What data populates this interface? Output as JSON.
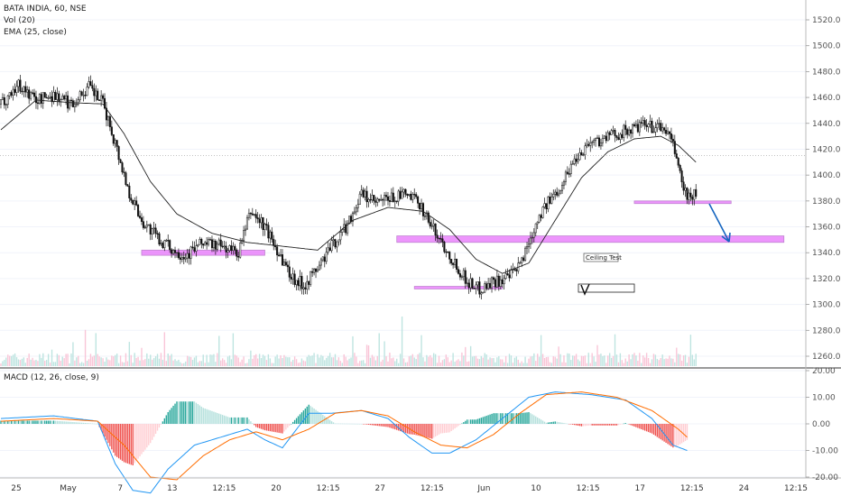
{
  "header": {
    "symbol_line": "BATA INDIA, 60, NSE",
    "vol_line": "Vol (20)",
    "ema_line": "EMA (25, close)",
    "macd_line": "MACD (12, 26, close, 9)"
  },
  "colors": {
    "up": "#26a69a",
    "down": "#ef5350",
    "macd_line": "#2196f3",
    "signal_line": "#ff6d00",
    "level_band": "#e040fb",
    "arrow": "#1565c0"
  },
  "annotations": {
    "ceiling_test": "Ceiling Test"
  },
  "chart_data": [
    {
      "type": "candlestick",
      "title": "BATA INDIA, 60, NSE",
      "price_ticks": [
        1520,
        1500,
        1480,
        1460,
        1440,
        1420,
        1400,
        1380,
        1360,
        1340,
        1320,
        1300,
        1280,
        1260
      ],
      "price_tick_labels": [
        "1520.00",
        "1500.00",
        "1480.00",
        "1460.00",
        "1440.00",
        "1420.00",
        "1400.00",
        "1380.00",
        "1360.00",
        "1340.00",
        "1320.00",
        "1300.00",
        "1280.00",
        "1260.00"
      ],
      "ylim": [
        1250,
        1530
      ],
      "x_labels": [
        "25",
        "May",
        "7",
        "13",
        "12:15",
        "20",
        "12:15",
        "27",
        "12:15",
        "Jun",
        "10",
        "12:15",
        "17",
        "12:15",
        "24",
        "12:15"
      ],
      "price_anchors": [
        [
          0,
          1455
        ],
        [
          10,
          1470
        ],
        [
          20,
          1458
        ],
        [
          30,
          1462
        ],
        [
          40,
          1455
        ],
        [
          50,
          1468
        ],
        [
          58,
          1455
        ],
        [
          65,
          1425
        ],
        [
          72,
          1390
        ],
        [
          80,
          1365
        ],
        [
          90,
          1350
        ],
        [
          98,
          1342
        ],
        [
          105,
          1338
        ],
        [
          115,
          1348
        ],
        [
          125,
          1345
        ],
        [
          135,
          1340
        ],
        [
          142,
          1372
        ],
        [
          150,
          1360
        ],
        [
          158,
          1340
        ],
        [
          165,
          1322
        ],
        [
          172,
          1315
        ],
        [
          180,
          1328
        ],
        [
          188,
          1345
        ],
        [
          196,
          1360
        ],
        [
          205,
          1385
        ],
        [
          213,
          1378
        ],
        [
          222,
          1382
        ],
        [
          230,
          1385
        ],
        [
          238,
          1378
        ],
        [
          245,
          1360
        ],
        [
          252,
          1345
        ],
        [
          258,
          1332
        ],
        [
          265,
          1318
        ],
        [
          272,
          1312
        ],
        [
          280,
          1318
        ],
        [
          288,
          1320
        ],
        [
          294,
          1328
        ],
        [
          300,
          1348
        ],
        [
          306,
          1370
        ],
        [
          312,
          1380
        ],
        [
          318,
          1392
        ],
        [
          326,
          1412
        ],
        [
          334,
          1425
        ],
        [
          342,
          1428
        ],
        [
          350,
          1432
        ],
        [
          358,
          1435
        ],
        [
          365,
          1438
        ],
        [
          372,
          1437
        ],
        [
          378,
          1435
        ],
        [
          384,
          1415
        ],
        [
          388,
          1388
        ],
        [
          392,
          1382
        ],
        [
          395,
          1386
        ]
      ],
      "ema_anchors": [
        [
          0,
          1435
        ],
        [
          20,
          1458
        ],
        [
          40,
          1456
        ],
        [
          58,
          1455
        ],
        [
          70,
          1432
        ],
        [
          85,
          1395
        ],
        [
          100,
          1370
        ],
        [
          120,
          1355
        ],
        [
          140,
          1348
        ],
        [
          160,
          1345
        ],
        [
          180,
          1342
        ],
        [
          200,
          1365
        ],
        [
          220,
          1375
        ],
        [
          240,
          1372
        ],
        [
          255,
          1358
        ],
        [
          270,
          1335
        ],
        [
          285,
          1324
        ],
        [
          300,
          1332
        ],
        [
          315,
          1365
        ],
        [
          330,
          1398
        ],
        [
          345,
          1418
        ],
        [
          360,
          1428
        ],
        [
          375,
          1430
        ],
        [
          385,
          1423
        ],
        [
          395,
          1410
        ]
      ],
      "current_price": 1415,
      "annotations": [
        {
          "type": "band",
          "price_low": 1338,
          "price_high": 1342,
          "from": 80,
          "to": 150
        },
        {
          "type": "band",
          "price_low": 1312,
          "price_high": 1314,
          "from": 235,
          "to": 285
        },
        {
          "type": "band",
          "price_low": 1348,
          "price_high": 1353,
          "from": 225,
          "to": 445
        },
        {
          "type": "band",
          "price_low": 1378,
          "price_high": 1380,
          "from": 360,
          "to": 415
        },
        {
          "type": "text",
          "price": 1340,
          "at": 323
        }
      ]
    },
    {
      "type": "histogram",
      "name": "MACD (12, 26, close, 9)",
      "y_ticks": [
        20,
        10,
        0,
        -10,
        -20
      ],
      "y_tick_labels": [
        "20.00",
        "10.00",
        "0.00",
        "-10.00",
        "-20.00"
      ],
      "ylim": [
        -24,
        24
      ],
      "macd_anchors": [
        [
          0,
          2
        ],
        [
          30,
          3
        ],
        [
          55,
          1
        ],
        [
          65,
          -15
        ],
        [
          75,
          -25
        ],
        [
          85,
          -26
        ],
        [
          95,
          -17
        ],
        [
          110,
          -8
        ],
        [
          125,
          -5
        ],
        [
          140,
          -2
        ],
        [
          150,
          -6
        ],
        [
          160,
          -9
        ],
        [
          175,
          4
        ],
        [
          188,
          4
        ],
        [
          205,
          5
        ],
        [
          220,
          2
        ],
        [
          232,
          -5
        ],
        [
          245,
          -11
        ],
        [
          255,
          -11
        ],
        [
          270,
          -6
        ],
        [
          285,
          2
        ],
        [
          300,
          10
        ],
        [
          315,
          12
        ],
        [
          335,
          11
        ],
        [
          355,
          9
        ],
        [
          370,
          2
        ],
        [
          382,
          -8
        ],
        [
          390,
          -10
        ]
      ],
      "signal_anchors": [
        [
          0,
          1
        ],
        [
          30,
          2
        ],
        [
          55,
          1
        ],
        [
          70,
          -8
        ],
        [
          85,
          -20
        ],
        [
          100,
          -21
        ],
        [
          115,
          -12
        ],
        [
          130,
          -6
        ],
        [
          145,
          -3
        ],
        [
          160,
          -6
        ],
        [
          175,
          -2
        ],
        [
          190,
          4
        ],
        [
          205,
          5
        ],
        [
          220,
          3
        ],
        [
          235,
          -3
        ],
        [
          250,
          -8
        ],
        [
          265,
          -9
        ],
        [
          280,
          -4
        ],
        [
          295,
          4
        ],
        [
          310,
          11
        ],
        [
          330,
          12
        ],
        [
          350,
          10
        ],
        [
          370,
          5
        ],
        [
          385,
          -2
        ],
        [
          390,
          -5
        ]
      ]
    }
  ]
}
